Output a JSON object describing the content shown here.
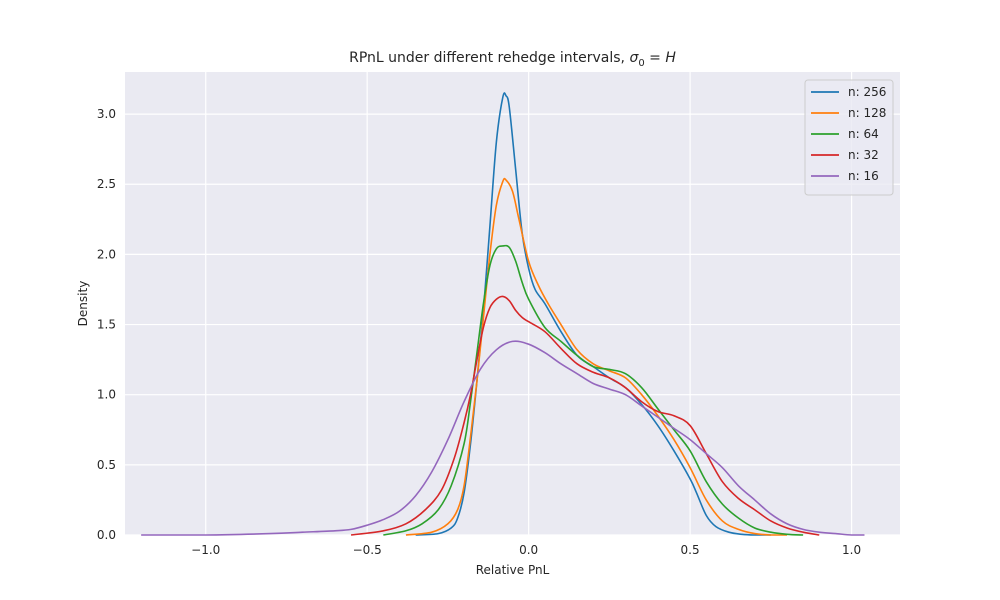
{
  "chart_data": {
    "type": "line",
    "title": "RPnL under different rehedge intervals, ",
    "title_math": {
      "base": "σ",
      "sub": "0",
      "rest": " = H"
    },
    "xlabel": "Relative PnL",
    "ylabel": "Density",
    "xlim": [
      -1.25,
      1.15
    ],
    "ylim": [
      0,
      3.3
    ],
    "xticks": [
      -1.0,
      -0.5,
      0.0,
      0.5,
      1.0
    ],
    "xtick_labels": [
      "−1.0",
      "−0.5",
      "0.0",
      "0.5",
      "1.0"
    ],
    "yticks": [
      0.0,
      0.5,
      1.0,
      1.5,
      2.0,
      2.5,
      3.0
    ],
    "ytick_labels": [
      "0.0",
      "0.5",
      "1.0",
      "1.5",
      "2.0",
      "2.5",
      "3.0"
    ],
    "grid": true,
    "background": "#eaeaf2",
    "legend_position": "top-right",
    "series": [
      {
        "name": "n: 256",
        "color": "#1f77b4",
        "x": [
          -0.35,
          -0.28,
          -0.24,
          -0.22,
          -0.2,
          -0.18,
          -0.16,
          -0.14,
          -0.12,
          -0.1,
          -0.08,
          -0.07,
          -0.06,
          -0.04,
          -0.02,
          0.0,
          0.02,
          0.05,
          0.1,
          0.15,
          0.2,
          0.25,
          0.3,
          0.35,
          0.4,
          0.45,
          0.5,
          0.52,
          0.55,
          0.58,
          0.62,
          0.66,
          0.7,
          0.75
        ],
        "y": [
          0.0,
          0.01,
          0.05,
          0.12,
          0.3,
          0.65,
          1.1,
          1.6,
          2.2,
          2.8,
          3.12,
          3.13,
          3.05,
          2.6,
          2.15,
          1.9,
          1.75,
          1.65,
          1.45,
          1.28,
          1.2,
          1.12,
          1.05,
          0.93,
          0.78,
          0.6,
          0.4,
          0.3,
          0.14,
          0.06,
          0.02,
          0.005,
          0.0,
          0.0
        ]
      },
      {
        "name": "n: 128",
        "color": "#ff7f0e",
        "x": [
          -0.38,
          -0.3,
          -0.25,
          -0.22,
          -0.2,
          -0.18,
          -0.16,
          -0.14,
          -0.12,
          -0.1,
          -0.08,
          -0.07,
          -0.05,
          -0.03,
          0.0,
          0.03,
          0.06,
          0.1,
          0.15,
          0.2,
          0.25,
          0.3,
          0.35,
          0.4,
          0.45,
          0.5,
          0.55,
          0.6,
          0.65,
          0.7,
          0.75,
          0.8
        ],
        "y": [
          0.0,
          0.02,
          0.08,
          0.18,
          0.35,
          0.7,
          1.1,
          1.55,
          2.0,
          2.35,
          2.52,
          2.53,
          2.45,
          2.25,
          1.95,
          1.78,
          1.65,
          1.5,
          1.32,
          1.22,
          1.17,
          1.12,
          1.0,
          0.85,
          0.68,
          0.48,
          0.25,
          0.1,
          0.04,
          0.01,
          0.0,
          0.0
        ]
      },
      {
        "name": "n: 64",
        "color": "#2ca02c",
        "x": [
          -0.45,
          -0.38,
          -0.33,
          -0.28,
          -0.24,
          -0.2,
          -0.18,
          -0.16,
          -0.14,
          -0.12,
          -0.1,
          -0.08,
          -0.06,
          -0.04,
          -0.02,
          0.0,
          0.05,
          0.1,
          0.15,
          0.2,
          0.25,
          0.3,
          0.35,
          0.4,
          0.45,
          0.5,
          0.55,
          0.6,
          0.65,
          0.7,
          0.75,
          0.8,
          0.85
        ],
        "y": [
          0.0,
          0.03,
          0.08,
          0.18,
          0.35,
          0.65,
          0.95,
          1.3,
          1.65,
          1.92,
          2.04,
          2.06,
          2.05,
          1.95,
          1.8,
          1.68,
          1.48,
          1.38,
          1.28,
          1.2,
          1.18,
          1.15,
          1.05,
          0.9,
          0.75,
          0.6,
          0.38,
          0.22,
          0.12,
          0.05,
          0.02,
          0.005,
          0.0
        ]
      },
      {
        "name": "n: 32",
        "color": "#d62728",
        "x": [
          -0.55,
          -0.45,
          -0.38,
          -0.32,
          -0.27,
          -0.23,
          -0.2,
          -0.18,
          -0.16,
          -0.14,
          -0.12,
          -0.1,
          -0.08,
          -0.06,
          -0.04,
          -0.02,
          0.0,
          0.05,
          0.1,
          0.15,
          0.2,
          0.25,
          0.3,
          0.35,
          0.4,
          0.45,
          0.5,
          0.55,
          0.6,
          0.65,
          0.7,
          0.75,
          0.8,
          0.85,
          0.9
        ],
        "y": [
          0.0,
          0.03,
          0.08,
          0.18,
          0.32,
          0.55,
          0.8,
          1.0,
          1.25,
          1.48,
          1.62,
          1.68,
          1.7,
          1.67,
          1.6,
          1.55,
          1.52,
          1.45,
          1.33,
          1.22,
          1.16,
          1.12,
          1.05,
          0.95,
          0.88,
          0.85,
          0.78,
          0.58,
          0.38,
          0.26,
          0.18,
          0.1,
          0.05,
          0.02,
          0.0
        ]
      },
      {
        "name": "n: 16",
        "color": "#9467bd",
        "x": [
          -1.2,
          -1.0,
          -0.8,
          -0.7,
          -0.6,
          -0.55,
          -0.5,
          -0.45,
          -0.4,
          -0.35,
          -0.3,
          -0.25,
          -0.2,
          -0.15,
          -0.1,
          -0.05,
          0.0,
          0.05,
          0.1,
          0.15,
          0.2,
          0.25,
          0.3,
          0.35,
          0.4,
          0.45,
          0.5,
          0.55,
          0.6,
          0.65,
          0.7,
          0.75,
          0.8,
          0.85,
          0.9,
          0.95,
          1.0,
          1.04
        ],
        "y": [
          0.0,
          0.0,
          0.01,
          0.02,
          0.03,
          0.04,
          0.07,
          0.11,
          0.17,
          0.28,
          0.45,
          0.68,
          0.95,
          1.18,
          1.32,
          1.38,
          1.36,
          1.3,
          1.22,
          1.15,
          1.08,
          1.04,
          1.0,
          0.92,
          0.84,
          0.76,
          0.68,
          0.58,
          0.48,
          0.35,
          0.25,
          0.15,
          0.08,
          0.04,
          0.02,
          0.01,
          0.0,
          0.0
        ]
      }
    ]
  }
}
